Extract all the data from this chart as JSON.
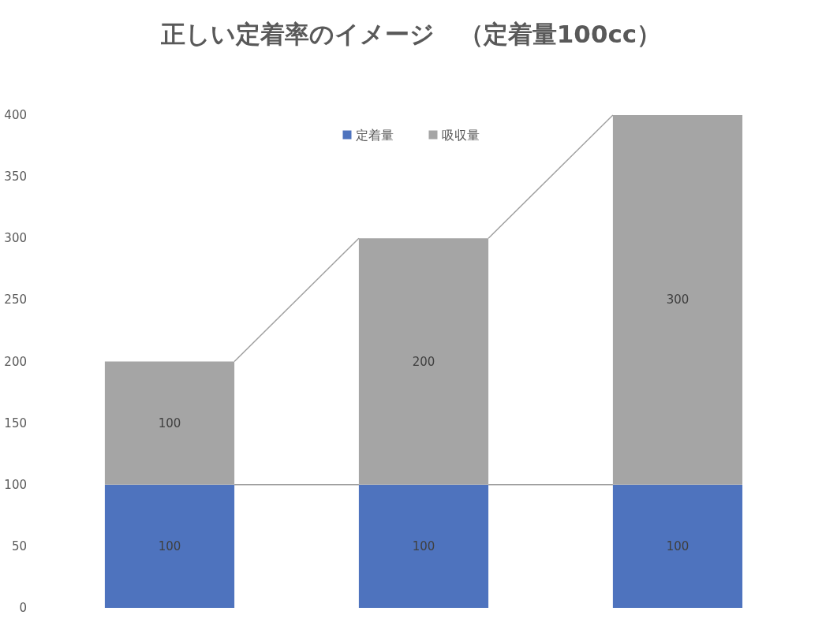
{
  "chart_data": {
    "type": "bar",
    "title": "正しい定着率のイメージ　（定着量100cc）",
    "categories": [
      null,
      null,
      null
    ],
    "stacked": true,
    "series": [
      {
        "name": "定着量",
        "color": "#4e73be",
        "values": [
          100,
          100,
          100
        ]
      },
      {
        "name": "吸収量",
        "color": "#a5a5a5",
        "values": [
          100,
          200,
          300
        ]
      }
    ],
    "ylim": [
      0,
      400
    ],
    "yticks": [
      0,
      50,
      100,
      150,
      200,
      250,
      300,
      350,
      400
    ],
    "data_labels": true,
    "legend": "top",
    "grid": false
  }
}
